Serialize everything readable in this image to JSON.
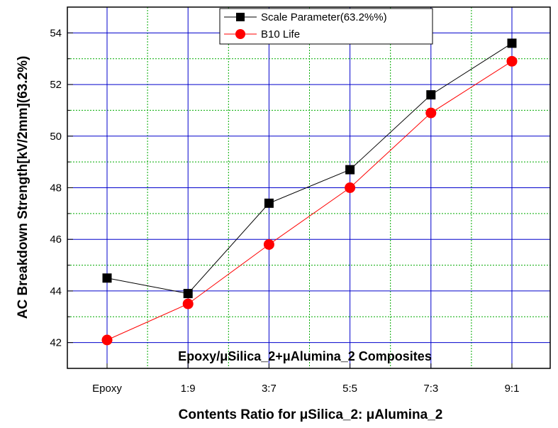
{
  "chart_data": {
    "type": "line",
    "categories": [
      "Epoxy",
      "1:9",
      "3:7",
      "5:5",
      "7:3",
      "9:1"
    ],
    "series": [
      {
        "name": "Scale Parameter(63.2%%)",
        "values": [
          44.5,
          43.9,
          47.4,
          48.7,
          51.6,
          53.6
        ],
        "color": "#000000",
        "marker": "square"
      },
      {
        "name": "B10 Life",
        "values": [
          42.1,
          43.5,
          45.8,
          48.0,
          50.9,
          52.9
        ],
        "color": "#ff0000",
        "marker": "circle"
      }
    ],
    "xlabel": "Contents Ratio for μSilica_2: μAlumina_2",
    "ylabel": "AC Breakdown Strength[kV/2mm](63.2%)",
    "annotation": "Epoxy/μSilica_2+μAlumina_2 Composites",
    "ylim": [
      41,
      55
    ],
    "yticks": [
      42,
      44,
      46,
      48,
      50,
      52,
      54
    ],
    "grid": true,
    "major_grid_color": "#0000cc",
    "minor_grid_color": "#00aa00",
    "legend_position": "top-center"
  }
}
